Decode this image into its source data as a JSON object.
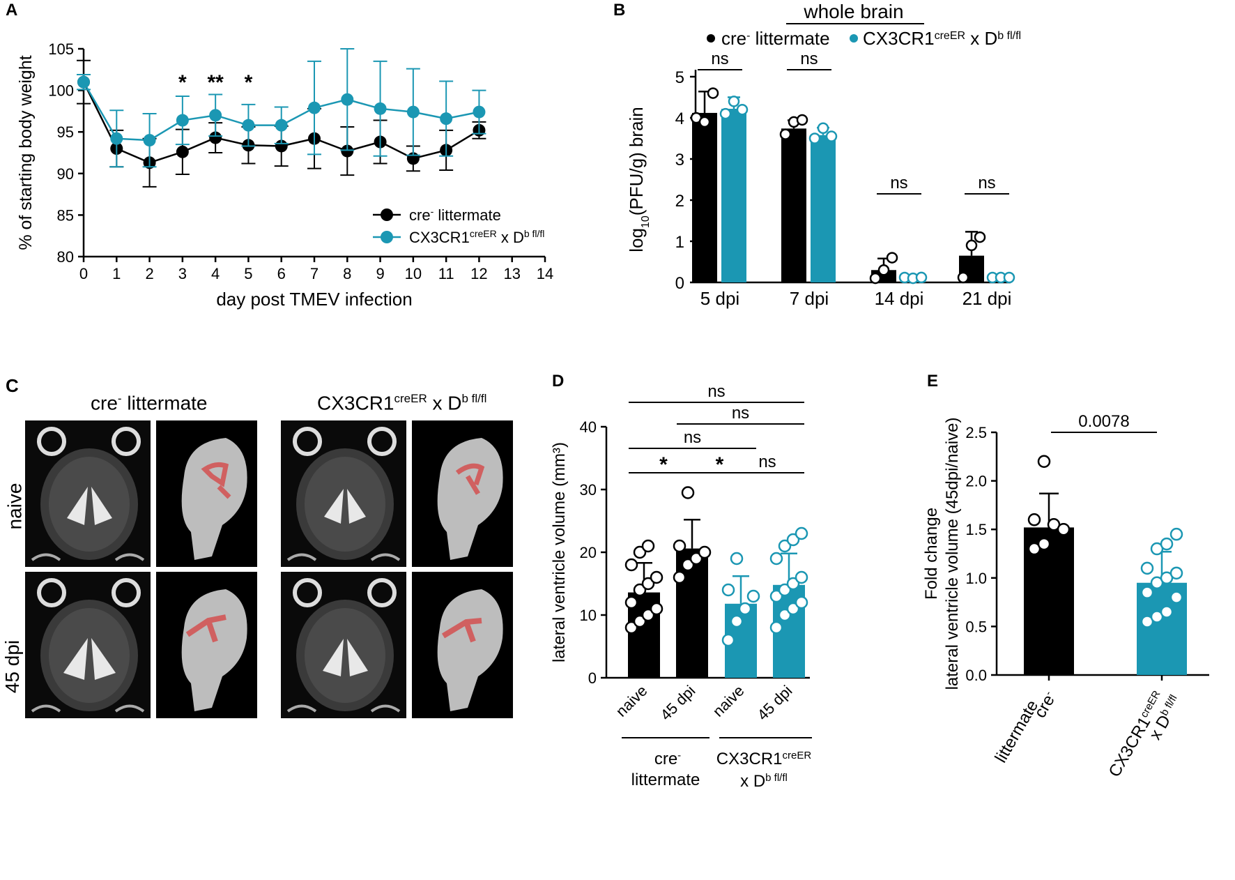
{
  "colors": {
    "black": "#000000",
    "teal": "#1b97b3",
    "red": "#d06060"
  },
  "chart_data": [
    {
      "panel": "A",
      "type": "line",
      "title": "",
      "xlabel": "day post TMEV infection",
      "ylabel": "% of starting body weight",
      "xlim": [
        0,
        14
      ],
      "ylim": [
        80,
        105
      ],
      "x_ticks": [
        "0",
        "1",
        "2",
        "3",
        "4",
        "5",
        "6",
        "7",
        "8",
        "9",
        "10",
        "11",
        "12",
        "13",
        "14"
      ],
      "y_ticks": [
        "80",
        "85",
        "90",
        "95",
        "100",
        "105"
      ],
      "legend_position": "bottom-right",
      "series": [
        {
          "name": "cre- littermate",
          "name_base": "cre",
          "name_sup": "-",
          "name_rest": " littermate",
          "color_key": "black",
          "x": [
            0,
            1,
            2,
            3,
            4,
            5,
            6,
            7,
            8,
            9,
            10,
            11,
            12
          ],
          "y": [
            101.0,
            93.0,
            91.3,
            92.6,
            94.3,
            93.4,
            93.3,
            94.2,
            92.7,
            93.8,
            91.8,
            92.8,
            95.2
          ],
          "err": [
            2.6,
            2.2,
            2.9,
            2.7,
            1.8,
            2.2,
            2.4,
            3.6,
            2.9,
            2.6,
            1.5,
            2.4,
            1.0
          ]
        },
        {
          "name": "CX3CR1creER x Db fl/fl",
          "name_base": "CX3CR1",
          "name_sup": "creER",
          "name_rest": " x D",
          "name_sup2": "b fl/fl",
          "color_key": "teal",
          "x": [
            0,
            1,
            2,
            3,
            4,
            5,
            6,
            7,
            8,
            9,
            10,
            11,
            12
          ],
          "y": [
            101.0,
            94.2,
            94.0,
            96.4,
            97.0,
            95.8,
            95.8,
            97.9,
            98.9,
            97.8,
            97.4,
            96.6,
            97.4
          ],
          "err": [
            0.9,
            3.4,
            3.2,
            2.9,
            2.5,
            2.5,
            2.2,
            5.6,
            6.1,
            5.7,
            5.2,
            4.5,
            2.6
          ]
        }
      ],
      "annotations": [
        {
          "x": 3,
          "text": "*"
        },
        {
          "x": 4,
          "text": "**"
        },
        {
          "x": 5,
          "text": "*"
        }
      ]
    },
    {
      "panel": "B",
      "type": "bar",
      "title": "whole brain",
      "xlabel": "",
      "ylabel_base": "log",
      "ylabel_sub": "10",
      "ylabel_rest": "(PFU/g) brain",
      "ylim": [
        0,
        5
      ],
      "y_ticks": [
        "0",
        "1",
        "2",
        "3",
        "4",
        "5"
      ],
      "categories": [
        "5 dpi",
        "7 dpi",
        "14 dpi",
        "21 dpi"
      ],
      "series": [
        {
          "name": "cre- littermate",
          "color_key": "black",
          "values": [
            4.12,
            3.74,
            0.3,
            0.65
          ],
          "err": [
            0.52,
            0.2,
            0.28,
            0.58
          ],
          "points": [
            [
              4.0,
              3.9,
              4.6
            ],
            [
              3.6,
              3.9,
              3.95
            ],
            [
              0.1,
              0.3,
              0.6
            ],
            [
              0.0,
              0.9,
              1.1
            ]
          ]
        },
        {
          "name": "CX3CR1creER x Db fl/fl",
          "color_key": "teal",
          "values": [
            4.22,
            3.58,
            0.1,
            0.0
          ],
          "err": [
            0.28,
            0.18,
            0.05,
            0.0
          ],
          "points": [
            [
              4.1,
              4.4,
              4.2
            ],
            [
              3.5,
              3.75,
              3.55
            ],
            [
              0.0,
              0.1,
              0.12
            ],
            [
              0.0,
              0.0,
              0.0
            ]
          ]
        }
      ],
      "comparisons": [
        "ns",
        "ns",
        "ns",
        "ns"
      ],
      "legend_position": "top"
    },
    {
      "panel": "D",
      "type": "bar",
      "ylabel": "lateral ventricle volume (mm³)",
      "ylim": [
        0,
        40
      ],
      "y_ticks": [
        "0",
        "10",
        "20",
        "30",
        "40"
      ],
      "categories": [
        "naive",
        "45 dpi",
        "naive",
        "45 dpi"
      ],
      "groups": [
        {
          "line1_base": "cre",
          "line1_sup": "-",
          "line2": "littermate"
        },
        {
          "line1_base": "CX3CR1",
          "line1_sup": "creER",
          "line2_base": "x D",
          "line2_sup": "b fl/fl"
        }
      ],
      "values": [
        13.6,
        20.6,
        11.8,
        14.8
      ],
      "err": [
        4.7,
        4.6,
        4.4,
        5.0
      ],
      "color_keys": [
        "black",
        "black",
        "teal",
        "teal"
      ],
      "points": [
        [
          8,
          9,
          10,
          11,
          12,
          14,
          15,
          16,
          18,
          20,
          21
        ],
        [
          16,
          18,
          19,
          20,
          21,
          29.5
        ],
        [
          6,
          9,
          11,
          13,
          14,
          19
        ],
        [
          8,
          10,
          11,
          12,
          13,
          14,
          15,
          16,
          19,
          21,
          22,
          23
        ]
      ],
      "comparisons": [
        {
          "from": 0,
          "to": 4,
          "label": "ns"
        },
        {
          "from": 1.5,
          "to": 4,
          "label": "ns"
        },
        {
          "from": 0,
          "to": 3,
          "label": "ns"
        },
        {
          "from": 0,
          "to": 2,
          "label": "*"
        },
        {
          "from": 2,
          "to": 3,
          "label": "*"
        },
        {
          "from": 3,
          "to": 4,
          "label": "ns"
        }
      ]
    },
    {
      "panel": "E",
      "type": "bar",
      "ylabel_line1": "Fold change",
      "ylabel_line2": "lateral ventricle volume (45dpi/naive)",
      "ylim": [
        0,
        2.5
      ],
      "y_ticks": [
        "0.0",
        "0.5",
        "1.0",
        "1.5",
        "2.0",
        "2.5"
      ],
      "categories": [
        {
          "line1_base": "cre",
          "line1_sup": "-",
          "line2": "littermate"
        },
        {
          "line1_base": "CX3CR1",
          "line1_sup": "creER",
          "line2_base": "x D",
          "line2_sup": "b fl/fl"
        }
      ],
      "values": [
        1.52,
        0.95
      ],
      "err": [
        0.35,
        0.32
      ],
      "color_keys": [
        "black",
        "teal"
      ],
      "points": [
        [
          1.3,
          1.35,
          1.55,
          1.5,
          1.6,
          2.2
        ],
        [
          0.55,
          0.6,
          0.65,
          0.8,
          0.85,
          0.95,
          1.0,
          1.05,
          1.1,
          1.3,
          1.35,
          1.45
        ]
      ],
      "comparison_label": "0.0078"
    }
  ],
  "panel_c": {
    "letter": "C",
    "col1_title_base": "cre",
    "col1_title_sup": "-",
    "col1_title_rest": " littermate",
    "col2_title_base": "CX3CR1",
    "col2_title_sup": "creER",
    "col2_title_rest": " x D",
    "col2_title_sup2": "b fl/fl",
    "row_labels": [
      "naive",
      "45 dpi"
    ]
  }
}
